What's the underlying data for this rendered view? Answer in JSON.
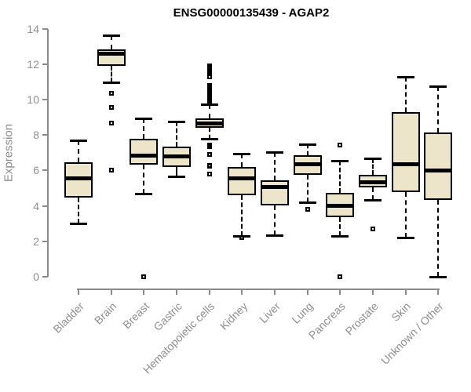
{
  "chart_data": {
    "type": "boxplot",
    "title": "ENSG00000135439 - AGAP2",
    "xlabel": "",
    "ylabel": "Expression",
    "ylim": [
      0,
      14
    ],
    "yticks": [
      0,
      2,
      4,
      6,
      8,
      10,
      12,
      14
    ],
    "grid": false,
    "legend": "none",
    "box_fill_color": "#EDE5C9",
    "box_border_color": "#000000",
    "axis_color": "#8A8A8A",
    "tick_label_color": "#8E8E8E",
    "title_color": "#000000",
    "categories": [
      "Bladder",
      "Brain",
      "Breast",
      "Gastric",
      "Hematopoietic cells",
      "Kidney",
      "Liver",
      "Lung",
      "Pancreas",
      "Prostate",
      "Skin",
      "Unknown / Other"
    ],
    "series": [
      {
        "category": "Bladder",
        "whisker_low": 3.0,
        "q1": 4.45,
        "median": 5.55,
        "q3": 6.45,
        "whisker_high": 7.7,
        "outliers": []
      },
      {
        "category": "Brain",
        "whisker_low": 11.0,
        "q1": 11.9,
        "median": 12.6,
        "q3": 12.85,
        "whisker_high": 13.65,
        "outliers": [
          10.35,
          9.55,
          8.7,
          6.0
        ]
      },
      {
        "category": "Breast",
        "whisker_low": 4.7,
        "q1": 6.35,
        "median": 6.85,
        "q3": 7.8,
        "whisker_high": 8.95,
        "outliers": [
          0.0
        ]
      },
      {
        "category": "Gastric",
        "whisker_low": 5.65,
        "q1": 6.2,
        "median": 6.8,
        "q3": 7.35,
        "whisker_high": 8.75,
        "outliers": []
      },
      {
        "category": "Hematopoietic cells",
        "whisker_low": 7.8,
        "q1": 8.4,
        "median": 8.65,
        "q3": 8.95,
        "whisker_high": 9.75,
        "outliers": [
          11.9,
          11.8,
          11.55,
          11.45,
          11.3,
          10.8,
          10.7,
          10.6,
          10.5,
          10.4,
          10.3,
          10.2,
          10.1,
          10.0,
          9.9,
          7.45,
          7.35,
          6.9,
          6.3,
          6.25,
          5.8
        ]
      },
      {
        "category": "Kidney",
        "whisker_low": 2.3,
        "q1": 4.6,
        "median": 5.55,
        "q3": 6.2,
        "whisker_high": 6.95,
        "outliers": [
          2.2
        ]
      },
      {
        "category": "Liver",
        "whisker_low": 2.35,
        "q1": 4.05,
        "median": 5.05,
        "q3": 5.45,
        "whisker_high": 7.05,
        "outliers": []
      },
      {
        "category": "Lung",
        "whisker_low": 4.2,
        "q1": 5.75,
        "median": 6.35,
        "q3": 6.85,
        "whisker_high": 7.5,
        "outliers": [
          3.8
        ]
      },
      {
        "category": "Pancreas",
        "whisker_low": 2.3,
        "q1": 3.35,
        "median": 4.0,
        "q3": 4.75,
        "whisker_high": 6.55,
        "outliers": [
          7.45,
          0.0
        ]
      },
      {
        "category": "Prostate",
        "whisker_low": 4.35,
        "q1": 5.05,
        "median": 5.35,
        "q3": 5.75,
        "whisker_high": 6.7,
        "outliers": [
          2.7
        ]
      },
      {
        "category": "Skin",
        "whisker_low": 2.2,
        "q1": 4.8,
        "median": 6.35,
        "q3": 9.3,
        "whisker_high": 11.3,
        "outliers": []
      },
      {
        "category": "Unknown / Other",
        "whisker_low": 0.0,
        "q1": 4.35,
        "median": 6.0,
        "q3": 8.15,
        "whisker_high": 10.75,
        "outliers": []
      }
    ]
  }
}
